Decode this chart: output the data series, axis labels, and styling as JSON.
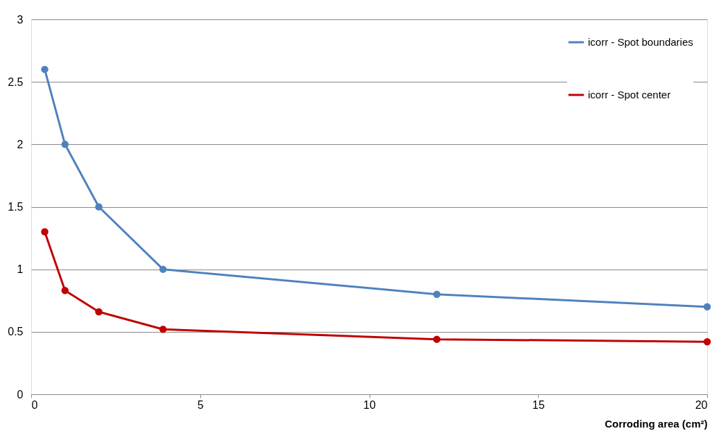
{
  "chart_data": {
    "type": "line",
    "xlabel": "Corroding area (cm²)",
    "x": [
      0.4,
      1,
      2,
      3.9,
      12,
      20
    ],
    "series": [
      {
        "name": "icorr - Spot boundaries",
        "color": "#4f81bd",
        "values": [
          2.6,
          2.0,
          1.5,
          1.0,
          0.8,
          0.7
        ]
      },
      {
        "name": "icorr - Spot center",
        "color": "#c00000",
        "values": [
          1.3,
          0.83,
          0.66,
          0.52,
          0.44,
          0.42
        ]
      }
    ],
    "xlim": [
      0,
      20
    ],
    "xticks": [
      0,
      5,
      10,
      15,
      20
    ],
    "ylim": [
      0,
      3
    ],
    "yticks": [
      0,
      0.5,
      1,
      1.5,
      2,
      2.5,
      3
    ],
    "grid": "y",
    "legend": "top right",
    "marker": "circle",
    "line_style": "solid"
  }
}
